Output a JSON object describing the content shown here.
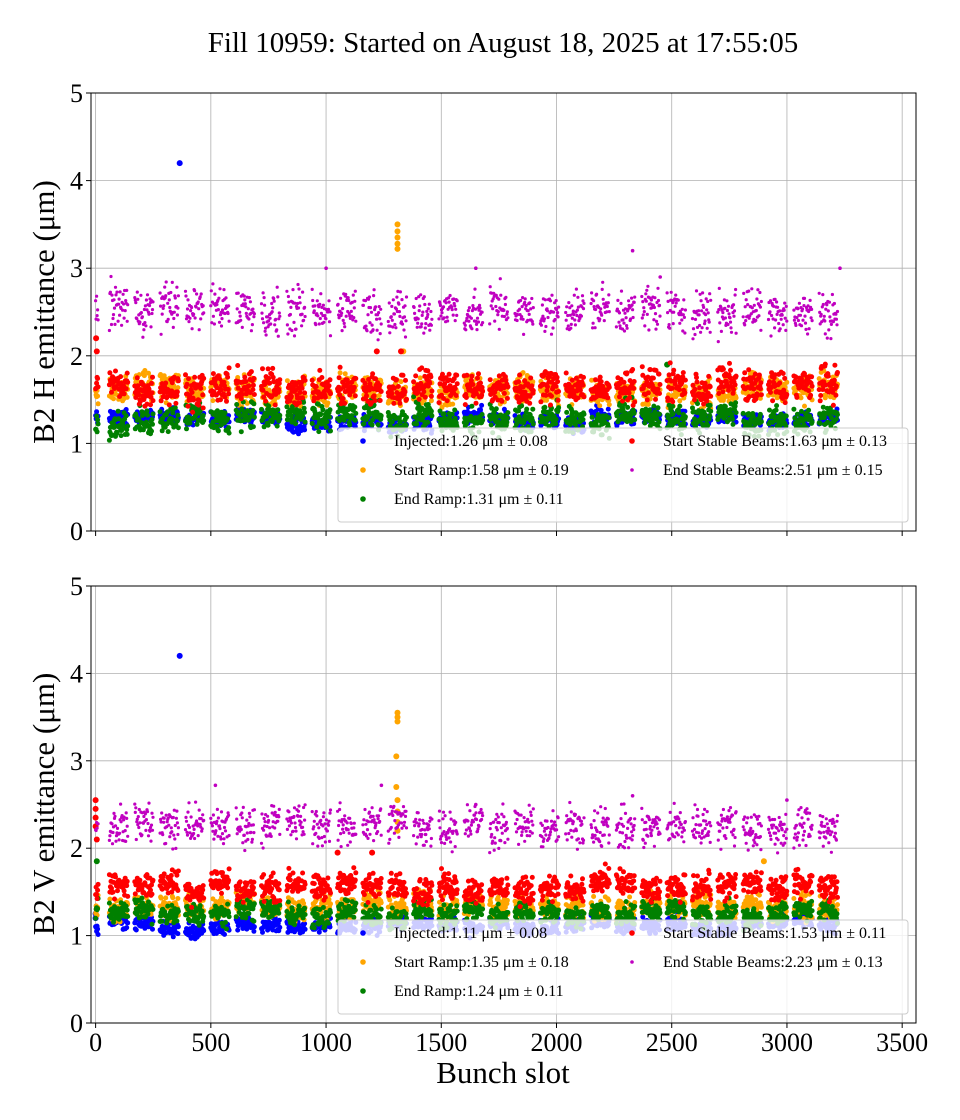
{
  "title": "Fill 10959: Started on August 18, 2025 at 17:55:05",
  "colors": {
    "injected": "#0000ff",
    "start_ramp": "#ffa500",
    "end_ramp": "#008000",
    "start_stable": "#ff0000",
    "end_stable": "#c000c0"
  },
  "chart_data": [
    {
      "type": "scatter",
      "ylabel": "B2 H emittance (μm)",
      "xlabel": "",
      "xlim": [
        -20,
        3560
      ],
      "ylim": [
        0,
        5
      ],
      "xticks": [
        0,
        500,
        1000,
        1500,
        2000,
        2500,
        3000,
        3500
      ],
      "yticks": [
        0,
        1,
        2,
        3,
        4,
        5
      ],
      "grid": true,
      "legend_position": "lower-right",
      "series": [
        {
          "key": "injected",
          "name": "Injected",
          "mean": 1.26,
          "std": 0.08,
          "stat_text": "1.26 μm ± 0.08",
          "band": [
            1.16,
            1.36
          ],
          "outliers": [
            [
              365,
              4.2
            ]
          ]
        },
        {
          "key": "start_ramp",
          "name": "Start Ramp",
          "mean": 1.58,
          "std": 0.19,
          "stat_text": "1.58 μm ± 0.19",
          "band": [
            1.45,
            1.78
          ],
          "outliers": [
            [
              1310,
              3.5
            ],
            [
              1310,
              3.42
            ],
            [
              1310,
              3.35
            ],
            [
              1310,
              3.28
            ],
            [
              1310,
              3.22
            ],
            [
              1335,
              2.05
            ]
          ]
        },
        {
          "key": "end_ramp",
          "name": "End Ramp",
          "mean": 1.31,
          "std": 0.11,
          "stat_text": "1.31 μm ± 0.11",
          "band": [
            1.12,
            1.45
          ],
          "outliers": [
            [
              2480,
              1.9
            ]
          ]
        },
        {
          "key": "start_stable",
          "name": "Start Stable Beams",
          "mean": 1.63,
          "std": 0.13,
          "stat_text": "1.63 μm ± 0.13",
          "band": [
            1.45,
            1.85
          ],
          "outliers": [
            [
              2,
              2.2
            ],
            [
              5,
              2.05
            ],
            [
              1325,
              2.05
            ],
            [
              1220,
              2.05
            ]
          ]
        },
        {
          "key": "end_stable",
          "name": "End Stable Beams",
          "mean": 2.51,
          "std": 0.15,
          "stat_text": "2.51 μm ± 0.15",
          "band": [
            2.25,
            2.8
          ],
          "outliers": [
            [
              2330,
              3.2
            ],
            [
              1650,
              3.0
            ],
            [
              3230,
              3.0
            ],
            [
              1000,
              3.0
            ],
            [
              2450,
              2.9
            ]
          ]
        }
      ]
    },
    {
      "type": "scatter",
      "ylabel": "B2 V emittance (μm)",
      "xlabel": "Bunch slot",
      "xlim": [
        -20,
        3560
      ],
      "ylim": [
        0,
        5
      ],
      "xticks": [
        0,
        500,
        1000,
        1500,
        2000,
        2500,
        3000,
        3500
      ],
      "yticks": [
        0,
        1,
        2,
        3,
        4,
        5
      ],
      "grid": true,
      "legend_position": "lower-right",
      "series": [
        {
          "key": "injected",
          "name": "Injected",
          "mean": 1.11,
          "std": 0.08,
          "stat_text": "1.11 μm ± 0.08",
          "band": [
            1.02,
            1.2
          ],
          "outliers": [
            [
              365,
              4.2
            ],
            [
              0,
              1.25
            ],
            [
              0,
              1.2
            ]
          ]
        },
        {
          "key": "start_ramp",
          "name": "Start Ramp",
          "mean": 1.35,
          "std": 0.18,
          "stat_text": "1.35 μm ± 0.18",
          "band": [
            1.2,
            1.5
          ],
          "outliers": [
            [
              1310,
              3.55
            ],
            [
              1310,
              3.5
            ],
            [
              1310,
              3.45
            ],
            [
              1305,
              3.05
            ],
            [
              1305,
              2.7
            ],
            [
              1310,
              2.55
            ],
            [
              1310,
              2.42
            ],
            [
              1310,
              2.3
            ],
            [
              1310,
              2.2
            ],
            [
              2900,
              1.85
            ]
          ]
        },
        {
          "key": "end_ramp",
          "name": "End Ramp",
          "mean": 1.24,
          "std": 0.11,
          "stat_text": "1.24 μm ± 0.11",
          "band": [
            1.12,
            1.38
          ],
          "outliers": [
            [
              5,
              1.85
            ]
          ]
        },
        {
          "key": "start_stable",
          "name": "Start Stable Beams",
          "mean": 1.53,
          "std": 0.11,
          "stat_text": "1.53 μm ± 0.11",
          "band": [
            1.4,
            1.72
          ],
          "outliers": [
            [
              0,
              2.55
            ],
            [
              0,
              2.45
            ],
            [
              0,
              2.35
            ],
            [
              0,
              2.25
            ],
            [
              5,
              2.1
            ],
            [
              1050,
              1.95
            ],
            [
              1200,
              1.95
            ]
          ]
        },
        {
          "key": "end_stable",
          "name": "End Stable Beams",
          "mean": 2.23,
          "std": 0.13,
          "stat_text": "2.23 μm ± 0.13",
          "band": [
            2.0,
            2.5
          ],
          "outliers": [
            [
              520,
              2.72
            ],
            [
              1240,
              2.72
            ],
            [
              2330,
              2.6
            ],
            [
              3000,
              2.55
            ],
            [
              1650,
              2.5
            ]
          ]
        }
      ]
    }
  ]
}
